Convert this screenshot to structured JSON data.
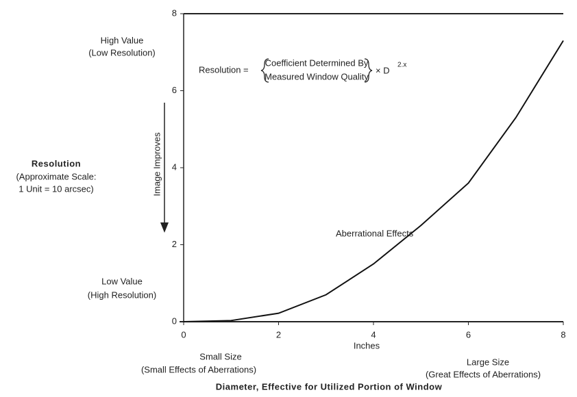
{
  "chart_data": {
    "type": "line",
    "x": [
      0,
      1,
      2,
      3,
      4,
      5,
      6,
      7,
      8
    ],
    "series": [
      {
        "name": "Aberrational Effects",
        "color": "#111111",
        "values": [
          0,
          0.03,
          0.22,
          0.7,
          1.5,
          2.5,
          3.6,
          5.3,
          7.3
        ]
      }
    ],
    "xlim": [
      0,
      8
    ],
    "ylim": [
      0,
      8
    ],
    "xticks": [
      0,
      2,
      4,
      6,
      8
    ],
    "yticks": [
      0,
      2,
      4,
      6,
      8
    ],
    "x_label": "Inches",
    "x_title": "Diameter, Effective for Utilized Portion of Window",
    "y_label": [
      "Resolution",
      "(Approximate Scale:",
      "1 Unit = 10 arcsec)"
    ],
    "y_arrow_label": "Image Improves",
    "annotations": [
      "High Value",
      "(Low Resolution)",
      "Low Value",
      "(High Resolution)",
      "Small Size",
      "(Small Effects of Aberrations)",
      "Large Size",
      "(Great Effects of Aberrations)"
    ],
    "formula": {
      "left": "Resolution =",
      "top": "Coefficient Determined By",
      "bottom": "Measured Window Quality",
      "right": "× D",
      "exponent": "2.x"
    }
  }
}
